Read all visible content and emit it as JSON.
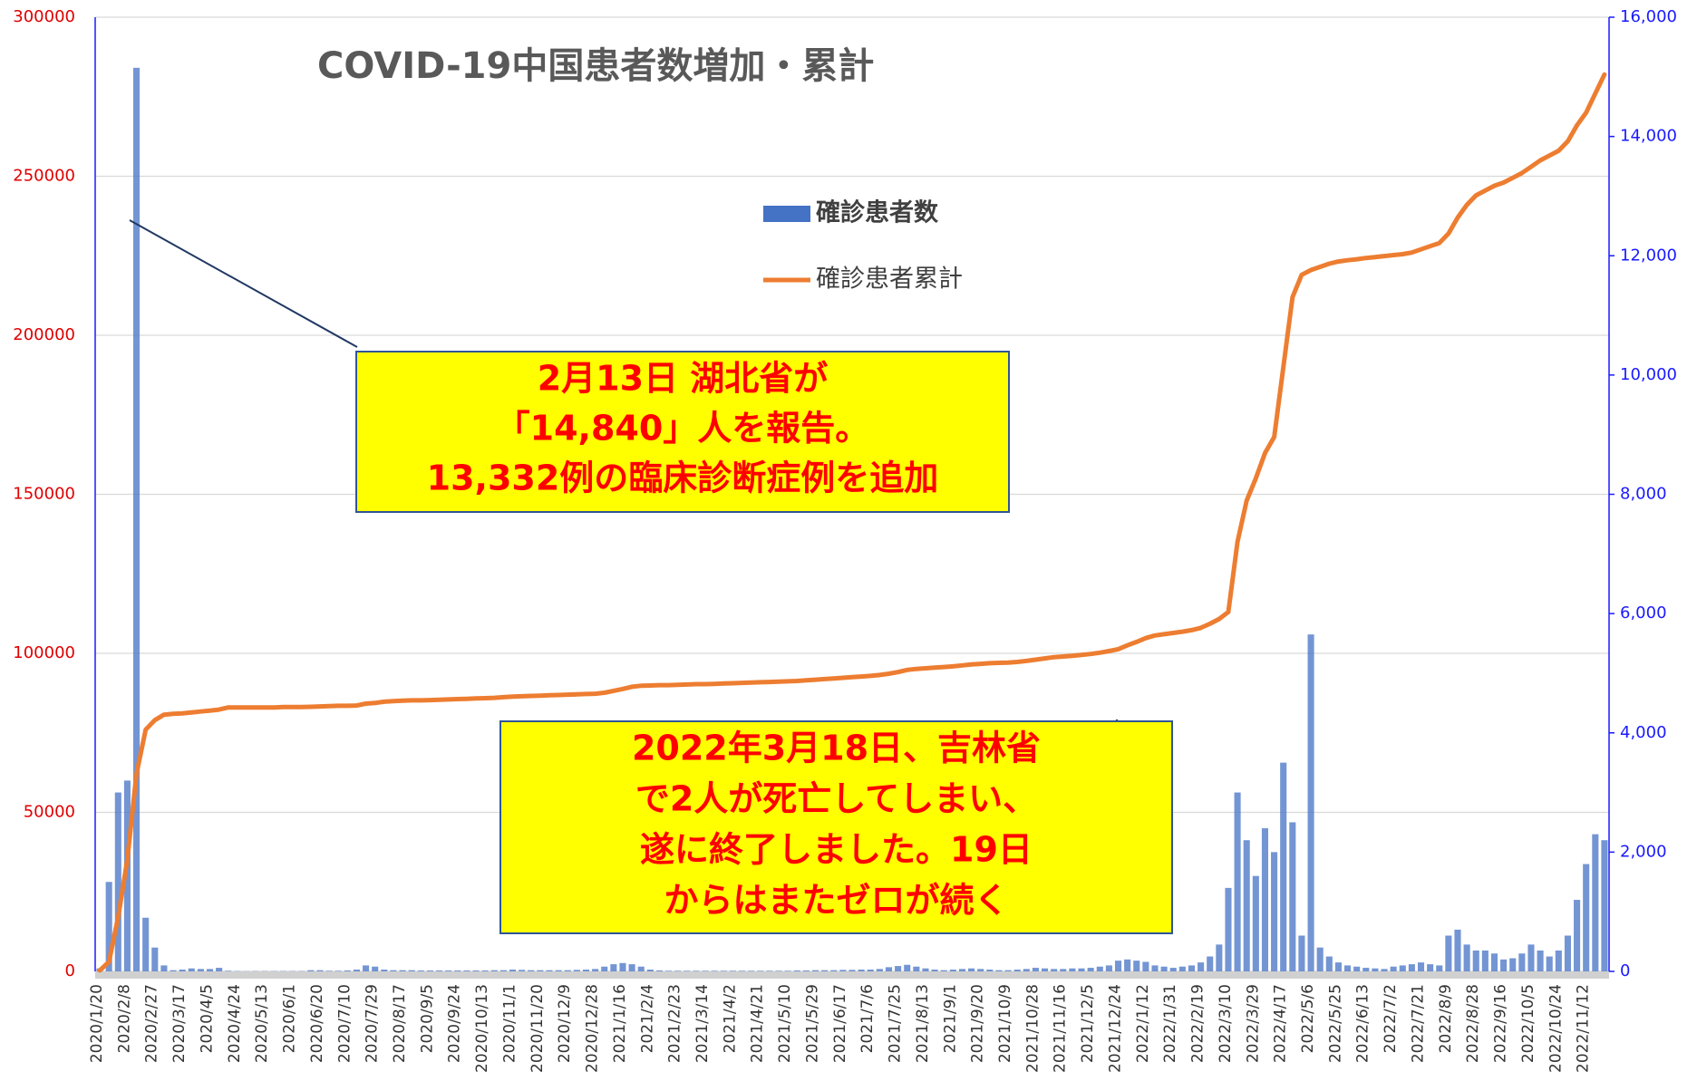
{
  "chart_data": {
    "type": "bar-line",
    "title": "COVID-19中国患者数増加・累計",
    "annotations": [
      [
        "2月13日 湖北省が",
        "「14,840」人を報告。",
        "13,332例の臨床診断症例を追加"
      ],
      [
        "2022年3月18日、吉林省",
        "で2人が死亡してしまい、",
        "遂に終了しました。19日",
        "からはまたゼロが続く"
      ]
    ],
    "categories": [
      "2020/1/20",
      null,
      null,
      "2020/2/8",
      null,
      null,
      "2020/2/27",
      null,
      null,
      "2020/3/17",
      null,
      null,
      "2020/4/5",
      null,
      null,
      "2020/4/24",
      null,
      null,
      "2020/5/13",
      null,
      null,
      "2020/6/1",
      null,
      null,
      "2020/6/20",
      null,
      null,
      "2020/7/10",
      null,
      null,
      "2020/7/29",
      null,
      null,
      "2020/8/17",
      null,
      null,
      "2020/9/5",
      null,
      null,
      "2020/9/24",
      null,
      null,
      "2020/10/13",
      null,
      null,
      "2020/11/1",
      null,
      null,
      "2020/11/20",
      null,
      null,
      "2020/12/9",
      null,
      null,
      "2020/12/28",
      null,
      null,
      "2021/1/16",
      null,
      null,
      "2021/2/4",
      null,
      null,
      "2021/2/23",
      null,
      null,
      "2021/3/14",
      null,
      null,
      "2021/4/2",
      null,
      null,
      "2021/4/21",
      null,
      null,
      "2021/5/10",
      null,
      null,
      "2021/5/29",
      null,
      null,
      "2021/6/17",
      null,
      null,
      "2021/7/6",
      null,
      null,
      "2021/7/25",
      null,
      null,
      "2021/8/13",
      null,
      null,
      "2021/9/1",
      null,
      null,
      "2021/9/20",
      null,
      null,
      "2021/10/9",
      null,
      null,
      "2021/10/28",
      null,
      null,
      "2021/11/16",
      null,
      null,
      "2021/12/5",
      null,
      null,
      "2021/12/24",
      null,
      null,
      "2022/1/12",
      null,
      null,
      "2022/1/31",
      null,
      null,
      "2022/2/19",
      null,
      null,
      "2022/3/10",
      null,
      null,
      "2022/3/29",
      null,
      null,
      "2022/4/17",
      null,
      null,
      "2022/5/6",
      null,
      null,
      "2022/5/25",
      null,
      null,
      "2022/6/13",
      null,
      null,
      "2022/7/2",
      null,
      null,
      "2022/7/21",
      null,
      null,
      "2022/8/9",
      null,
      null,
      "2022/8/28",
      null,
      null,
      "2022/9/16",
      null,
      null,
      "2022/10/5",
      null,
      null,
      "2022/10/24",
      null,
      null,
      "2022/11/12",
      null,
      null
    ],
    "series": [
      {
        "name": "確診患者数",
        "color": "#4472c4",
        "axis": "y2",
        "values": [
          50,
          1500,
          3000,
          3200,
          15152,
          900,
          400,
          100,
          20,
          30,
          50,
          40,
          40,
          60,
          10,
          5,
          3,
          5,
          5,
          5,
          5,
          5,
          5,
          20,
          20,
          10,
          10,
          15,
          30,
          100,
          80,
          30,
          20,
          20,
          20,
          15,
          15,
          15,
          15,
          15,
          15,
          15,
          15,
          20,
          20,
          30,
          25,
          20,
          20,
          20,
          20,
          20,
          25,
          30,
          40,
          80,
          120,
          140,
          120,
          80,
          30,
          15,
          10,
          10,
          10,
          10,
          10,
          10,
          10,
          10,
          10,
          10,
          10,
          10,
          10,
          10,
          15,
          15,
          20,
          20,
          20,
          25,
          25,
          30,
          30,
          40,
          70,
          90,
          110,
          80,
          50,
          30,
          20,
          30,
          40,
          50,
          40,
          30,
          20,
          20,
          30,
          40,
          60,
          50,
          40,
          40,
          50,
          50,
          60,
          80,
          100,
          180,
          200,
          180,
          160,
          100,
          80,
          60,
          80,
          100,
          150,
          250,
          450,
          1400,
          3000,
          2200,
          1600,
          2400,
          2000,
          3500,
          2500,
          600,
          5650,
          400,
          250,
          150,
          100,
          80,
          60,
          50,
          40,
          80,
          100,
          120,
          150,
          120,
          100,
          600,
          700,
          450,
          350,
          350,
          300,
          200,
          220,
          300,
          450,
          350,
          250,
          350,
          600,
          1200,
          1800,
          2300,
          2200
        ]
      },
      {
        "name": "確診患者累計",
        "color": "#ed7d31",
        "values": [
          300,
          3000,
          17000,
          35000,
          62000,
          76000,
          79000,
          80700,
          81000,
          81100,
          81400,
          81700,
          82000,
          82300,
          83000,
          83000,
          83000,
          83000,
          83000,
          83000,
          83100,
          83100,
          83100,
          83200,
          83300,
          83400,
          83500,
          83500,
          83600,
          84200,
          84400,
          84800,
          85000,
          85100,
          85200,
          85200,
          85300,
          85400,
          85500,
          85600,
          85700,
          85800,
          85900,
          86000,
          86200,
          86400,
          86500,
          86600,
          86700,
          86800,
          86900,
          87000,
          87100,
          87200,
          87300,
          87600,
          88200,
          88800,
          89500,
          89800,
          89900,
          90000,
          90000,
          90100,
          90200,
          90300,
          90300,
          90400,
          90500,
          90600,
          90700,
          90800,
          90900,
          91000,
          91100,
          91200,
          91300,
          91500,
          91700,
          91900,
          92100,
          92300,
          92500,
          92700,
          92900,
          93200,
          93600,
          94100,
          94800,
          95100,
          95300,
          95500,
          95700,
          95900,
          96200,
          96500,
          96700,
          96900,
          97000,
          97100,
          97300,
          97600,
          98000,
          98400,
          98800,
          99000,
          99200,
          99500,
          99800,
          100200,
          100700,
          101300,
          102500,
          103600,
          104800,
          105600,
          106000,
          106400,
          106800,
          107300,
          108000,
          109300,
          110800,
          113000,
          135000,
          148000,
          155000,
          163000,
          168000,
          190000,
          212000,
          219000,
          220500,
          221500,
          222500,
          223200,
          223600,
          223900,
          224300,
          224600,
          224900,
          225200,
          225500,
          226000,
          227000,
          228000,
          229000,
          232000,
          237000,
          241000,
          244000,
          245500,
          247000,
          248000,
          249500,
          251000,
          253000,
          255000,
          256500,
          258000,
          261000,
          266000,
          270000,
          276000,
          282000
        ]
      }
    ],
    "ylim": [
      0,
      300000
    ],
    "yticks": [
      0,
      50000,
      100000,
      150000,
      200000,
      250000,
      300000
    ],
    "y2lim": [
      0,
      16000
    ],
    "y2ticks": [
      0,
      {
        "value": 2000,
        "label": "2,000"
      },
      {
        "value": 4000,
        "label": "4,000"
      },
      {
        "value": 6000,
        "label": "6,000"
      },
      {
        "value": 8000,
        "label": "8,000"
      },
      {
        "value": 10000,
        "label": "10,000"
      },
      {
        "value": 12000,
        "label": "12,000"
      },
      {
        "value": 14000,
        "label": "14,000"
      },
      {
        "value": 16000,
        "label": "16,000"
      }
    ],
    "grid": true
  }
}
